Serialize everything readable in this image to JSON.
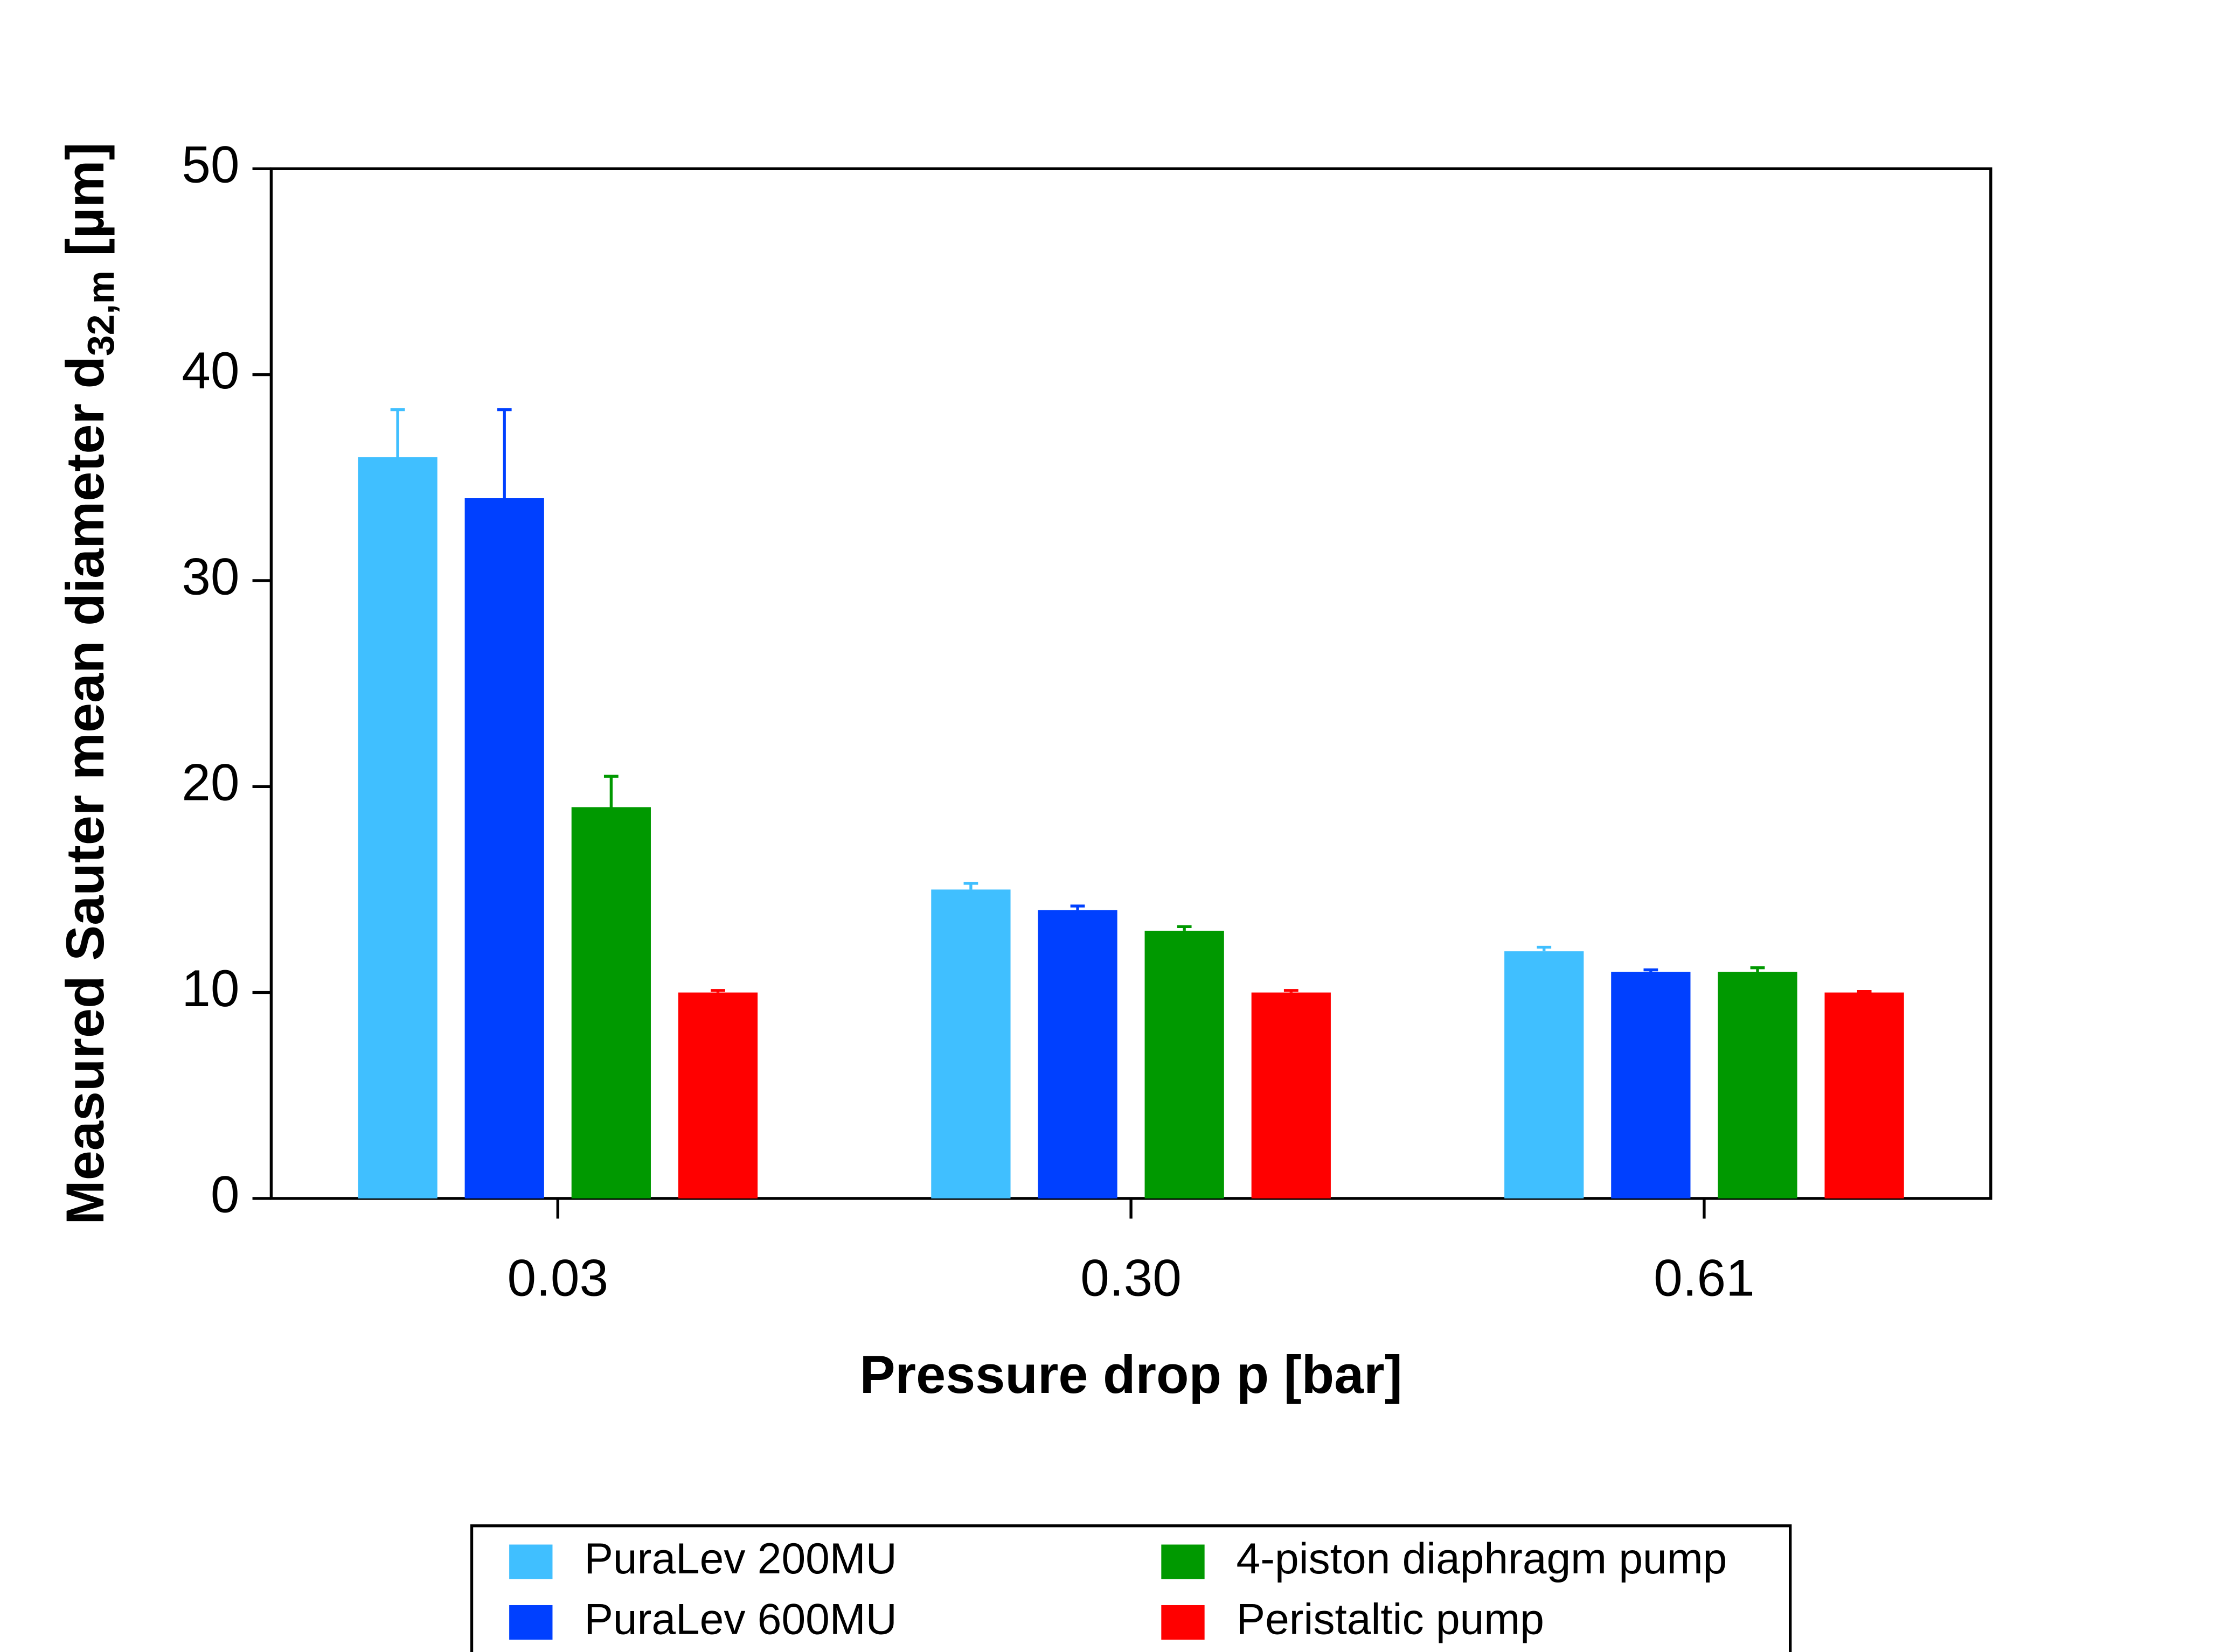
{
  "chart_data": {
    "type": "bar",
    "x_label": "Pressure drop p [bar]",
    "y_label": "Measured Sauter mean diameter d",
    "y_label_subscript": "32,m",
    "y_label_suffix": "[µm]",
    "categories": [
      "0.03",
      "0.30",
      "0.61"
    ],
    "series": [
      {
        "name": "PuraLev 200MU",
        "color": "#40bfff",
        "values": [
          36,
          15,
          12
        ],
        "errors": [
          2.3,
          0.3,
          0.2
        ]
      },
      {
        "name": "PuraLev 600MU",
        "color": "#0040ff",
        "values": [
          34,
          14,
          11
        ],
        "errors": [
          4.3,
          0.2,
          0.1
        ]
      },
      {
        "name": "4-piston diaphragm pump",
        "color": "#009900",
        "values": [
          19,
          13,
          11
        ],
        "errors": [
          1.5,
          0.2,
          0.2
        ]
      },
      {
        "name": "Peristaltic pump",
        "color": "#ff0000",
        "values": [
          10,
          10,
          10
        ],
        "errors": [
          0.1,
          0.1,
          0.05
        ]
      }
    ],
    "ylim": [
      0,
      50
    ],
    "yticks": [
      0,
      10,
      20,
      30,
      40,
      50
    ],
    "grid": false,
    "legend": "bottom"
  }
}
